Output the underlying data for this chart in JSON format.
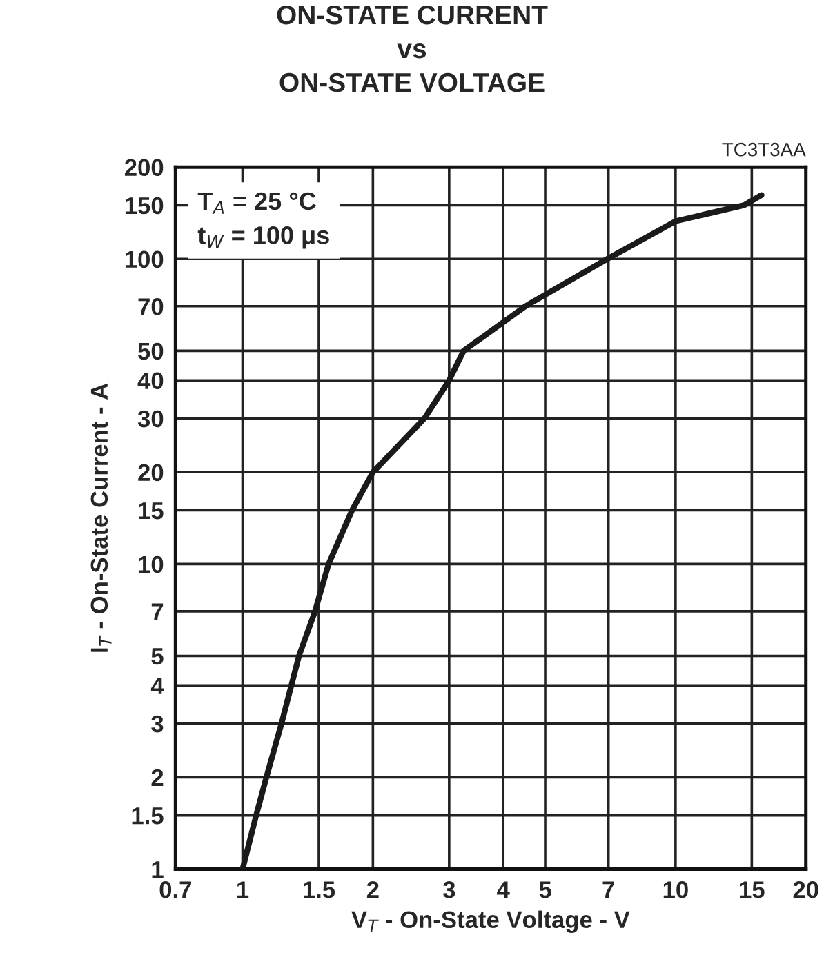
{
  "chart_data": {
    "type": "line",
    "title": "ON-STATE CURRENT\nvs\nON-STATE VOLTAGE",
    "xlabel": "V$_{T}$ - On-State Voltage - V",
    "ylabel": "I$_{T}$ - On-State Current - A",
    "annotations": [
      "T$_{A}$ = 25 °C\nt$_{W}$ = 100 μs",
      "TC3T3AA"
    ],
    "log": "xy",
    "grid": true,
    "marker": "none",
    "line_style": "solid",
    "xlim": [
      0.7,
      20
    ],
    "xticks": [
      0.7,
      1,
      1.5,
      2,
      3,
      4,
      5,
      7,
      10,
      15,
      20
    ],
    "ylim": [
      1,
      200
    ],
    "yticks": [
      1,
      1.5,
      2,
      3,
      4,
      5,
      7,
      10,
      15,
      20,
      30,
      40,
      50,
      70,
      100,
      150,
      200
    ],
    "series": [
      {
        "color": "#1a1a1a",
        "x": [
          1.0,
          1.075,
          1.135,
          1.23,
          1.35,
          1.47,
          1.58,
          1.79,
          2.0,
          2.63,
          3.0,
          3.24,
          4.5,
          6.95,
          10,
          14.4,
          15.8
        ],
        "values": [
          1,
          1.5,
          2,
          3,
          5,
          7,
          10,
          15,
          20,
          30,
          40,
          50,
          70,
          100,
          133,
          150,
          162
        ]
      }
    ]
  }
}
